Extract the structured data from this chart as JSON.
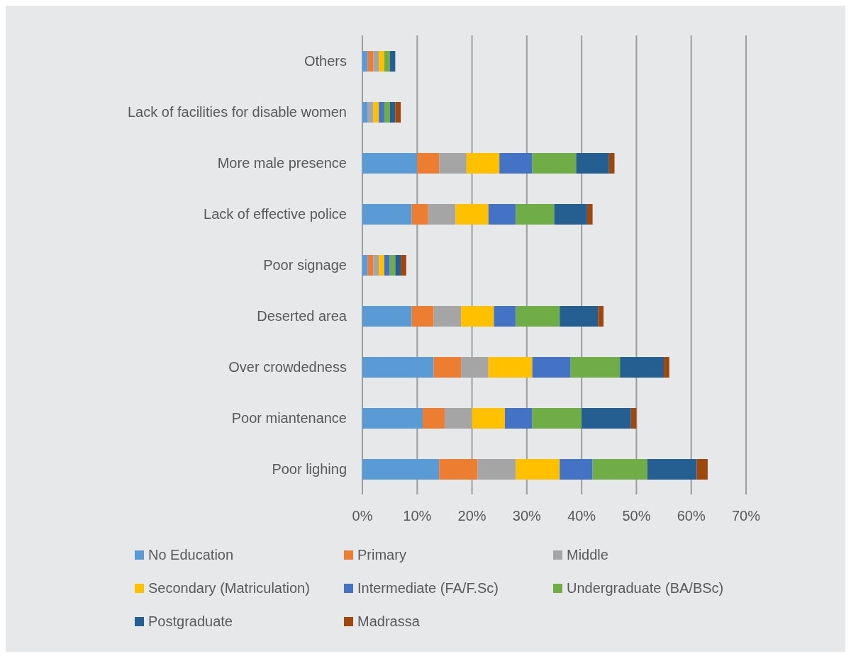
{
  "chart_data": {
    "type": "bar",
    "orientation": "horizontal",
    "stacked": true,
    "categories": [
      "Others",
      "Lack of facilities for disable women",
      "More male presence",
      "Lack of effective police",
      "Poor signage",
      "Deserted area",
      "Over crowdedness",
      "Poor miantenance",
      "Poor lighing"
    ],
    "series": [
      {
        "name": "No Education",
        "color": "#5b9bd5",
        "values": [
          1,
          1,
          10,
          9,
          1,
          9,
          13,
          11,
          14
        ]
      },
      {
        "name": "Primary",
        "color": "#ed7d31",
        "values": [
          1,
          0,
          4,
          3,
          1,
          4,
          5,
          4,
          7
        ]
      },
      {
        "name": "Middle",
        "color": "#a5a5a5",
        "values": [
          1,
          1,
          5,
          5,
          1,
          5,
          5,
          5,
          7
        ]
      },
      {
        "name": "Secondary (Matriculation)",
        "color": "#ffc000",
        "values": [
          1,
          1,
          6,
          6,
          1,
          6,
          8,
          6,
          8
        ]
      },
      {
        "name": "Intermediate (FA/F.Sc)",
        "color": "#4472c4",
        "values": [
          0,
          1,
          6,
          5,
          1,
          4,
          7,
          5,
          6
        ]
      },
      {
        "name": "Undergraduate (BA/BSc)",
        "color": "#70ad47",
        "values": [
          1,
          1,
          8,
          7,
          1,
          8,
          9,
          9,
          10
        ]
      },
      {
        "name": "Postgraduate",
        "color": "#255e91",
        "values": [
          1,
          1,
          6,
          6,
          1,
          7,
          8,
          9,
          9
        ]
      },
      {
        "name": "Madrassa",
        "color": "#9e480e",
        "values": [
          0,
          1,
          1,
          1,
          1,
          1,
          1,
          1,
          2
        ]
      }
    ],
    "xlim": [
      0,
      70
    ],
    "xticks": [
      {
        "value": 0,
        "label": "0%"
      },
      {
        "value": 10,
        "label": "10%"
      },
      {
        "value": 20,
        "label": "20%"
      },
      {
        "value": 30,
        "label": "30%"
      },
      {
        "value": 40,
        "label": "40%"
      },
      {
        "value": 50,
        "label": "50%"
      },
      {
        "value": 60,
        "label": "60%"
      },
      {
        "value": 70,
        "label": "70%"
      }
    ],
    "grid": "x",
    "legend": "bottom"
  }
}
